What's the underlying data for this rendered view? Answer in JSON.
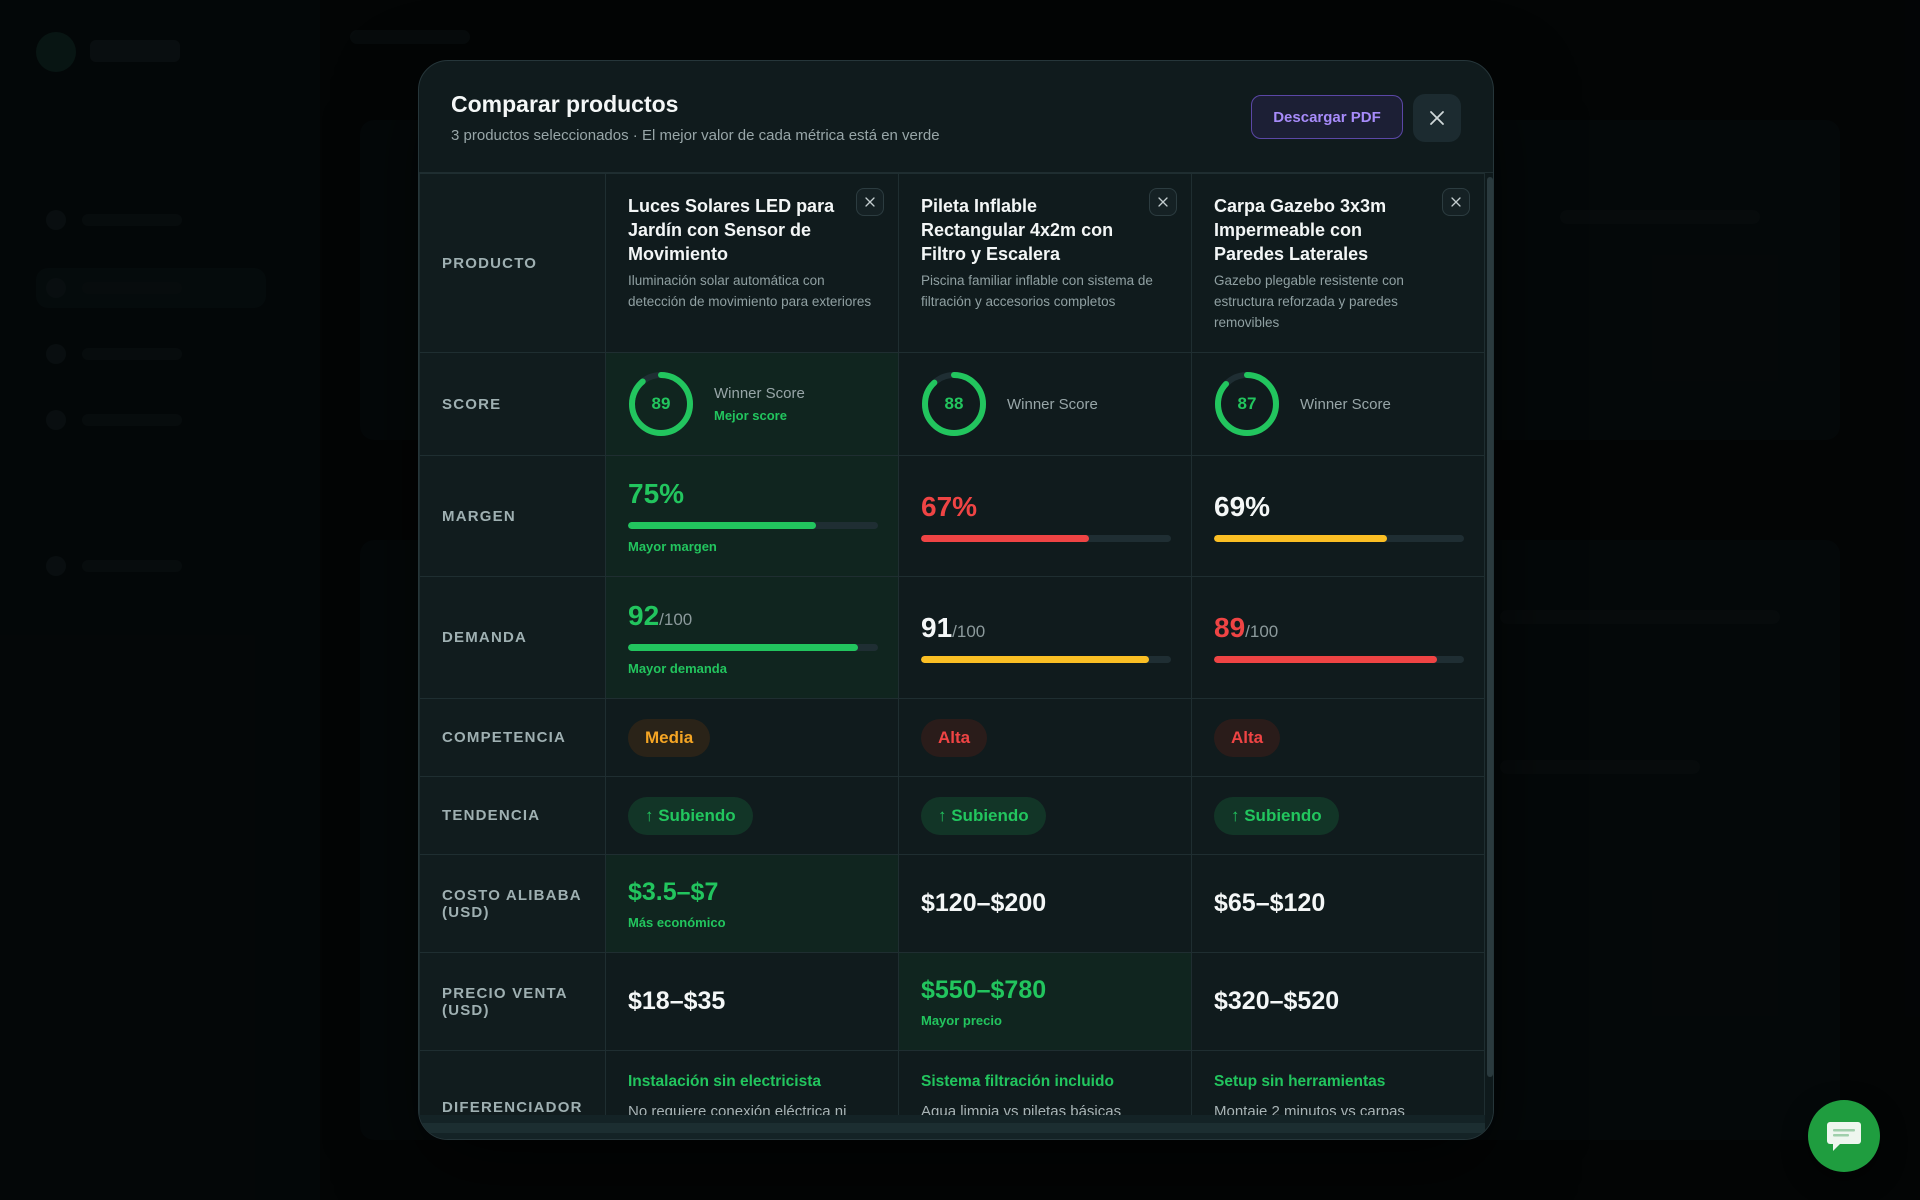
{
  "modal": {
    "title": "Comparar productos",
    "subtitle": "3 productos seleccionados · El mejor valor de cada métrica está en verde",
    "pdf_button": "Descargar PDF",
    "close_icon": "close-icon"
  },
  "row_labels": {
    "product": "PRODUCTO",
    "score": "SCORE",
    "margin": "MARGEN",
    "demand": "DEMANDA",
    "competition": "COMPETENCIA",
    "trend": "TENDENCIA",
    "cost": "COSTO ALIBABA (USD)",
    "price": "PRECIO VENTA (USD)",
    "differentiator": "DIFERENCIADOR"
  },
  "products": [
    {
      "name": "Luces Solares LED para Jardín con Sensor de Movimiento",
      "description": "Iluminación solar automática con detección de movimiento para exteriores",
      "score": 89,
      "score_label": "Winner Score",
      "score_note": "Mejor score",
      "margin": "75%",
      "margin_value": 75,
      "margin_note": "Mayor margen",
      "demand": "92",
      "demand_value": 92,
      "demand_suffix": "/100",
      "demand_note": "Mayor demanda",
      "competition": "Media",
      "trend": "↑ Subiendo",
      "cost": "$3.5–$7",
      "cost_note": "Más económico",
      "price": "$18–$35",
      "diff_title": "Instalación sin electricista",
      "diff_desc": "No requiere conexión eléctrica ni"
    },
    {
      "name": "Pileta Inflable Rectangular 4x2m con Filtro y Escalera",
      "description": "Piscina familiar inflable con sistema de filtración y accesorios completos",
      "score": 88,
      "score_label": "Winner Score",
      "margin": "67%",
      "margin_value": 67,
      "demand": "91",
      "demand_value": 91,
      "demand_suffix": "/100",
      "competition": "Alta",
      "trend": "↑ Subiendo",
      "cost": "$120–$200",
      "price": "$550–$780",
      "price_note": "Mayor precio",
      "diff_title": "Sistema filtración incluido",
      "diff_desc": "Agua limpia vs piletas básicas"
    },
    {
      "name": "Carpa Gazebo 3x3m Impermeable con Paredes Laterales",
      "description": "Gazebo plegable resistente con estructura reforzada y paredes removibles",
      "score": 87,
      "score_label": "Winner Score",
      "margin": "69%",
      "margin_value": 69,
      "demand": "89",
      "demand_value": 89,
      "demand_suffix": "/100",
      "competition": "Alta",
      "trend": "↑ Subiendo",
      "cost": "$65–$120",
      "price": "$320–$520",
      "diff_title": "Setup sin herramientas",
      "diff_desc": "Montaje 2 minutos vs carpas"
    }
  ],
  "colors": {
    "green": "#22c55e",
    "red": "#ef4444",
    "yellow": "#fbbf24",
    "accent_purple": "#a78bfa",
    "chat_button": "#1f9d3f"
  },
  "chat": {
    "icon": "chat-bubble-icon"
  }
}
